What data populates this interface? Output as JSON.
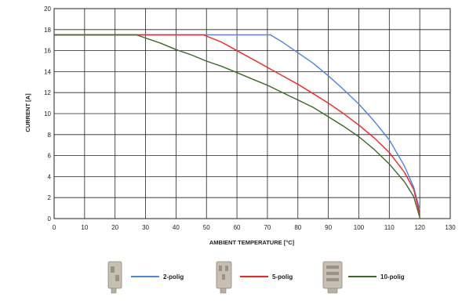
{
  "chart_data": {
    "type": "line",
    "title": "",
    "xlabel": "AMBIENT TEMPERATURE [°C]",
    "ylabel": "CURRENT [A]",
    "xlim": [
      0,
      130
    ],
    "ylim": [
      0,
      20
    ],
    "xticks": [
      "0",
      "10",
      "20",
      "30",
      "40",
      "50",
      "60",
      "70",
      "80",
      "90",
      "100",
      "110",
      "120",
      "130"
    ],
    "yticks": [
      "0",
      "2",
      "4",
      "6",
      "8",
      "10",
      "12",
      "14",
      "16",
      "18",
      "20"
    ],
    "grid": true,
    "legend_position": "bottom",
    "series": [
      {
        "name": "2-polig",
        "color": "#4a86e8",
        "x": [
          0,
          71,
          75,
          80,
          85,
          90,
          95,
          100,
          105,
          110,
          115,
          118,
          120
        ],
        "y": [
          17.5,
          17.5,
          16.8,
          15.8,
          14.8,
          13.6,
          12.3,
          10.9,
          9.3,
          7.5,
          5.0,
          3.0,
          0.8
        ]
      },
      {
        "name": "5-polig",
        "color": "#ff1f1f",
        "x": [
          0,
          49,
          55,
          60,
          65,
          70,
          75,
          80,
          85,
          90,
          95,
          100,
          105,
          110,
          115,
          118,
          120
        ],
        "y": [
          17.5,
          17.5,
          16.8,
          16.0,
          15.2,
          14.4,
          13.6,
          12.8,
          11.9,
          11.0,
          10.0,
          8.9,
          7.7,
          6.3,
          4.4,
          2.8,
          0.4
        ]
      },
      {
        "name": "10-polig",
        "color": "#3b6a2a",
        "x": [
          0,
          27,
          30,
          35,
          40,
          45,
          50,
          55,
          60,
          65,
          70,
          75,
          80,
          85,
          90,
          95,
          100,
          105,
          110,
          115,
          118,
          120
        ],
        "y": [
          17.5,
          17.5,
          17.2,
          16.7,
          16.1,
          15.6,
          15.0,
          14.5,
          13.9,
          13.3,
          12.7,
          12.0,
          11.3,
          10.6,
          9.7,
          8.8,
          7.8,
          6.6,
          5.2,
          3.5,
          2.1,
          0.1
        ]
      }
    ]
  }
}
